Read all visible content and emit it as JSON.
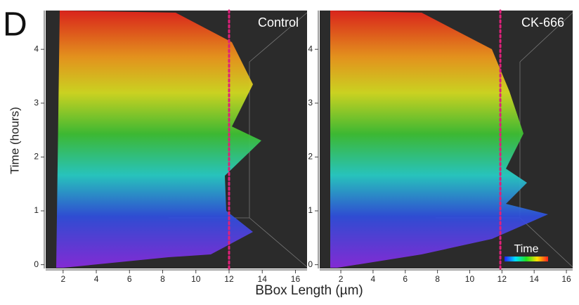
{
  "panel_label": "D",
  "y_axis_label": "Time (hours)",
  "x_axis_label": "BBox Length (µm)",
  "chart_data": [
    {
      "type": "3d-render",
      "title": "Control",
      "xlim": [
        0.95,
        16.7
      ],
      "ylim": [
        -0.07,
        4.72
      ],
      "xticks": [
        2,
        4,
        6,
        8,
        10,
        12,
        14,
        16
      ],
      "yticks": [
        0,
        1,
        2,
        3,
        4
      ],
      "reference_x": 12,
      "reference_color": "#e0207a"
    },
    {
      "type": "3d-render",
      "title": "CK-666",
      "xlim": [
        0.69,
        16.39
      ],
      "ylim": [
        -0.07,
        4.72
      ],
      "xticks": [
        2,
        4,
        6,
        8,
        10,
        12,
        14,
        16
      ],
      "yticks": [
        0,
        1,
        2,
        3,
        4
      ],
      "reference_x": 11.9,
      "reference_color": "#e0207a",
      "colorbar_label": "Time"
    }
  ]
}
